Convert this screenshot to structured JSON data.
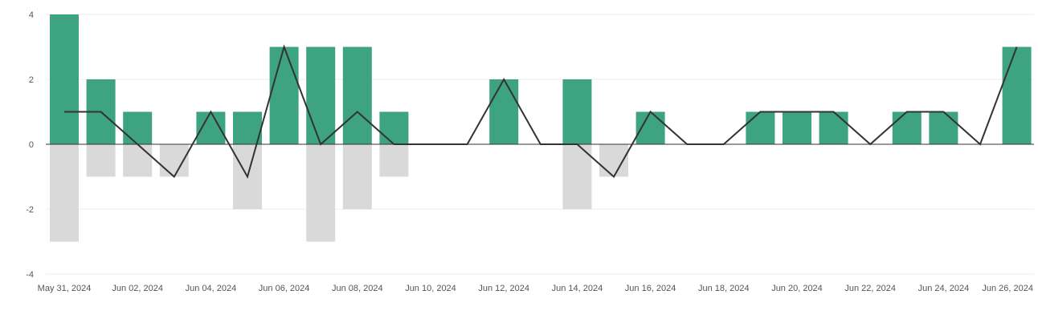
{
  "chart_data": {
    "type": "bar",
    "x": [
      "May 31, 2024",
      "Jun 01, 2024",
      "Jun 02, 2024",
      "Jun 03, 2024",
      "Jun 04, 2024",
      "Jun 05, 2024",
      "Jun 06, 2024",
      "Jun 07, 2024",
      "Jun 08, 2024",
      "Jun 09, 2024",
      "Jun 10, 2024",
      "Jun 11, 2024",
      "Jun 12, 2024",
      "Jun 13, 2024",
      "Jun 14, 2024",
      "Jun 15, 2024",
      "Jun 16, 2024",
      "Jun 17, 2024",
      "Jun 18, 2024",
      "Jun 19, 2024",
      "Jun 20, 2024",
      "Jun 21, 2024",
      "Jun 22, 2024",
      "Jun 23, 2024",
      "Jun 24, 2024",
      "Jun 25, 2024",
      "Jun 26, 2024"
    ],
    "x_tick_labels": [
      "May 31, 2024",
      "Jun 02, 2024",
      "Jun 04, 2024",
      "Jun 06, 2024",
      "Jun 08, 2024",
      "Jun 10, 2024",
      "Jun 12, 2024",
      "Jun 14, 2024",
      "Jun 16, 2024",
      "Jun 18, 2024",
      "Jun 20, 2024",
      "Jun 22, 2024",
      "Jun 24, 2024",
      "Jun 26, 2024"
    ],
    "y_ticks": [
      4,
      2,
      0,
      -2,
      -4
    ],
    "ylim": [
      -4,
      4
    ],
    "series": [
      {
        "kind": "bar",
        "color": "#3ea381",
        "values": [
          4,
          2,
          1,
          0,
          1,
          1,
          3,
          3,
          3,
          1,
          0,
          0,
          2,
          0,
          2,
          0,
          1,
          0,
          0,
          1,
          1,
          1,
          0,
          1,
          1,
          0,
          3
        ]
      },
      {
        "kind": "bar",
        "color": "#d9d9d9",
        "values": [
          -3,
          -1,
          -1,
          -1,
          0,
          -2,
          0,
          -3,
          -2,
          -1,
          0,
          0,
          0,
          0,
          -2,
          -1,
          0,
          0,
          0,
          0,
          0,
          0,
          0,
          0,
          0,
          0,
          0
        ]
      },
      {
        "kind": "line",
        "color": "#333333",
        "values": [
          1,
          1,
          0,
          -1,
          1,
          -1,
          3,
          0,
          1,
          0,
          0,
          0,
          2,
          0,
          0,
          -1,
          1,
          0,
          0,
          1,
          1,
          1,
          0,
          1,
          1,
          0,
          3
        ]
      }
    ],
    "grid": true,
    "legend": "none",
    "title": "",
    "xlabel": "",
    "ylabel": ""
  }
}
